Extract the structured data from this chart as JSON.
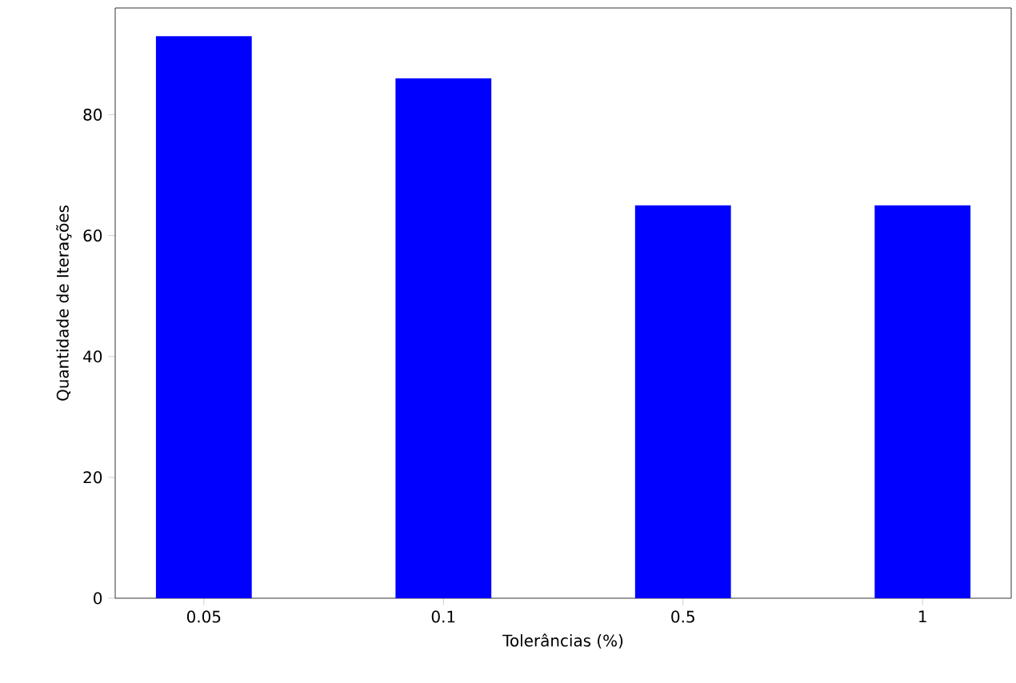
{
  "chart_data": {
    "type": "bar",
    "xlabel": "Tolerâncias (%)",
    "ylabel": "Quantidade de Iterações",
    "categories": [
      "0.05",
      "0.1",
      "0.5",
      "1"
    ],
    "values": [
      93,
      86,
      65,
      65
    ],
    "color": "#0000ff",
    "ylim": [
      0,
      97.65
    ],
    "yticks": [
      0,
      20,
      40,
      60,
      80
    ],
    "grid": false
  }
}
